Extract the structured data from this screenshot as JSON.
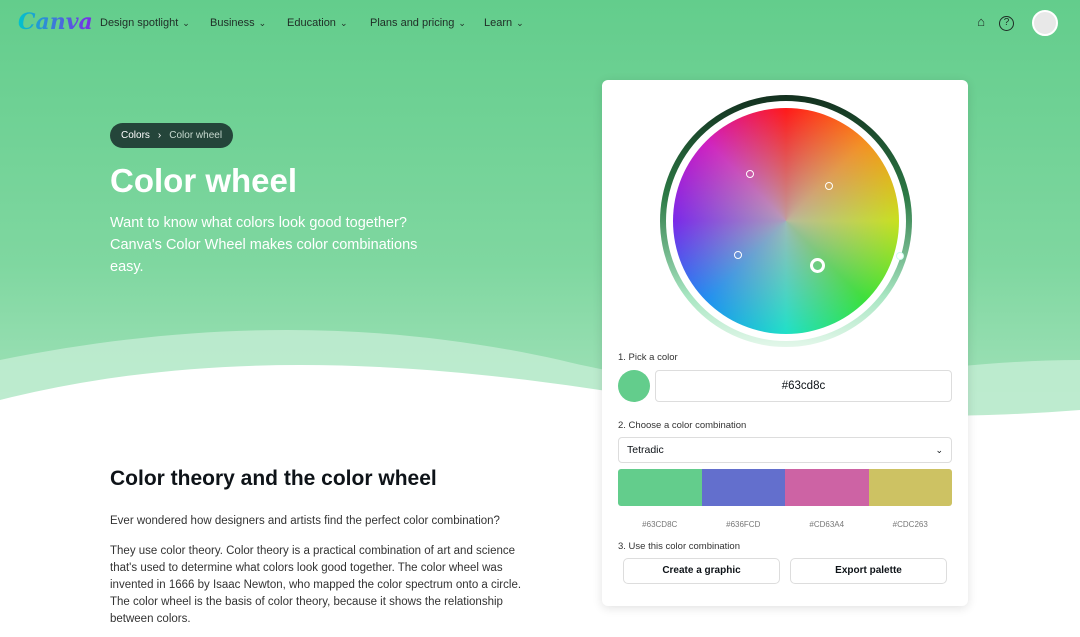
{
  "nav": {
    "logo": "Canva",
    "items": [
      "Design spotlight",
      "Business",
      "Education",
      "Plans and pricing",
      "Learn"
    ]
  },
  "breadcrumb": {
    "parent": "Colors",
    "current": "Color wheel"
  },
  "hero": {
    "title": "Color wheel",
    "lead": "Want to know what colors look good together? Canva's Color Wheel makes color combinations easy."
  },
  "article": {
    "heading": "Color theory and the color wheel",
    "p1": "Ever wondered how designers and artists find the perfect color combination?",
    "p2": "They use color theory. Color theory is a practical combination of art and science that's used to determine what colors look good together. The color wheel was invented in 1666 by Isaac Newton, who mapped the color spectrum onto a circle. The color wheel is the basis of color theory, because it shows the relationship between colors."
  },
  "tool": {
    "step1": "1. Pick a color",
    "hex_value": "#63cd8c",
    "step2": "2. Choose a color combination",
    "combination": "Tetradic",
    "palette": [
      {
        "code": "#63CD8C",
        "color": "#63cd8c"
      },
      {
        "code": "#636FCD",
        "color": "#636fcd"
      },
      {
        "code": "#CD63A4",
        "color": "#cd63a4"
      },
      {
        "code": "#CDC263",
        "color": "#cdc263"
      }
    ],
    "step3": "3. Use this color combination",
    "create_label": "Create a graphic",
    "export_label": "Export palette"
  }
}
